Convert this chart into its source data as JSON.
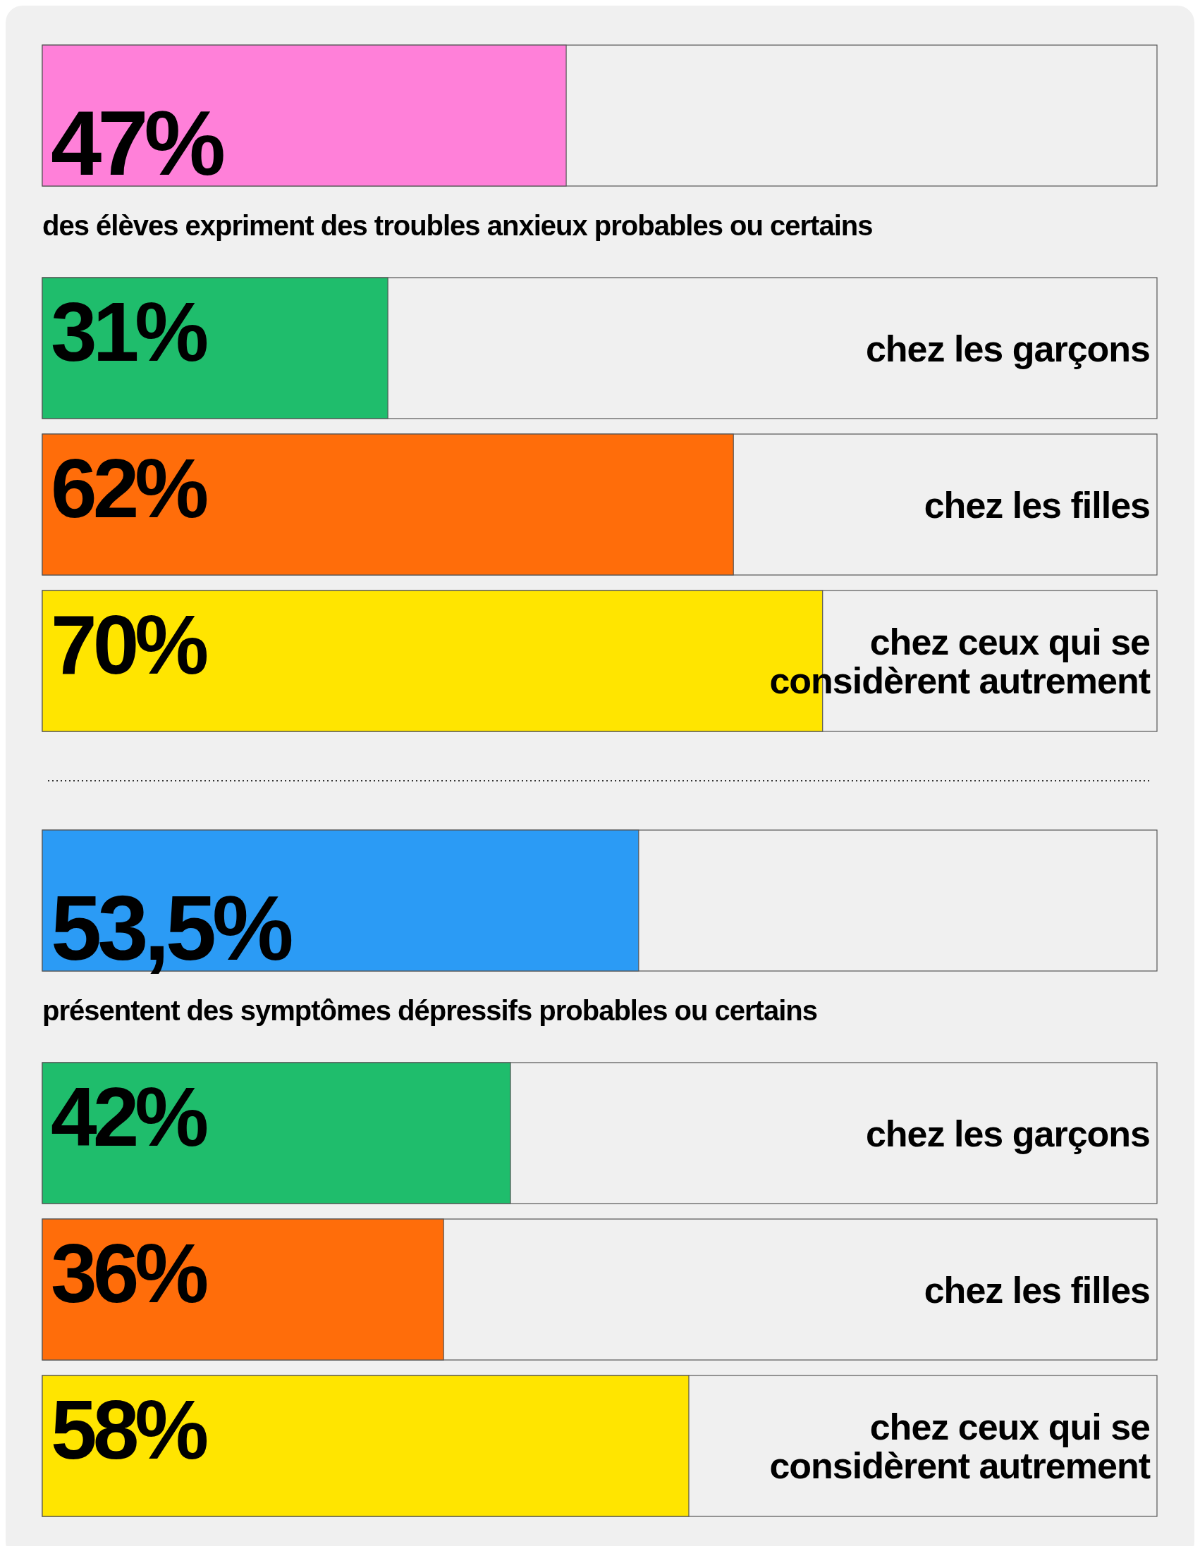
{
  "chart_data": [
    {
      "type": "bar",
      "orientation": "horizontal",
      "xlim": [
        0,
        100
      ],
      "tick_labels": false,
      "categories": [
        "des élèves expriment des troubles anxieux probables ou certains",
        "chez les garçons",
        "chez les filles",
        "chez ceux qui se considèrent autrement"
      ],
      "values": [
        47,
        31,
        62,
        70
      ],
      "colors": [
        "#ff80d9",
        "#1fbd6c",
        "#ff6d0a",
        "#ffe500"
      ],
      "value_labels": [
        "47%",
        "31%",
        "62%",
        "70%"
      ]
    },
    {
      "type": "bar",
      "orientation": "horizontal",
      "xlim": [
        0,
        100
      ],
      "tick_labels": false,
      "categories": [
        "présentent des symptômes dépressifs probables ou certains",
        "chez les garçons",
        "chez les filles",
        "chez ceux qui se considèrent autrement"
      ],
      "values": [
        53.5,
        42,
        36,
        58
      ],
      "colors": [
        "#2b9bf5",
        "#1fbd6c",
        "#ff6d0a",
        "#ffe500"
      ],
      "value_labels": [
        "53,5%",
        "42%",
        "36%",
        "58%"
      ]
    }
  ]
}
